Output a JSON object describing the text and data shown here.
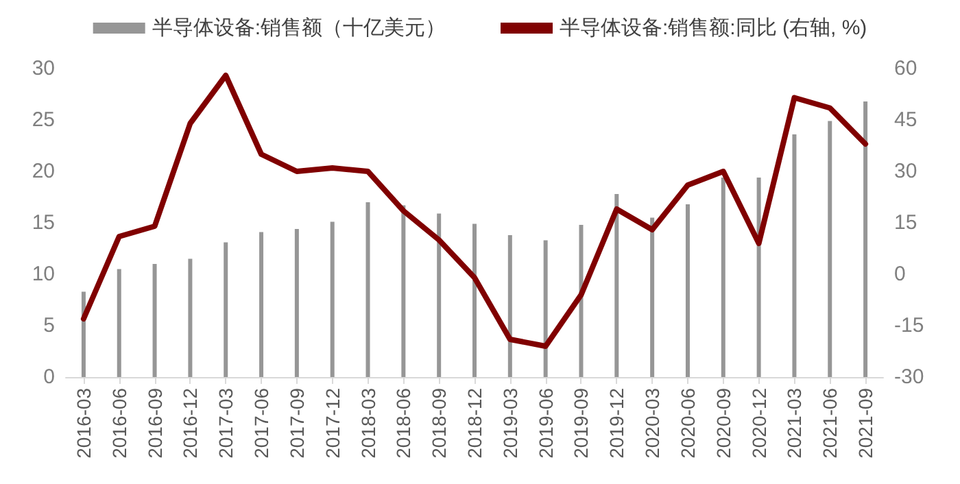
{
  "chart_data": {
    "type": "bar",
    "categories": [
      "2016-03",
      "2016-06",
      "2016-09",
      "2016-12",
      "2017-03",
      "2017-06",
      "2017-09",
      "2017-12",
      "2018-03",
      "2018-06",
      "2018-09",
      "2018-12",
      "2019-03",
      "2019-06",
      "2019-09",
      "2019-12",
      "2020-03",
      "2020-06",
      "2020-09",
      "2020-12",
      "2021-03",
      "2021-06",
      "2021-09"
    ],
    "series": [
      {
        "name": "半导体设备:销售额（十亿美元）",
        "color": "#969696",
        "values": [
          8.3,
          10.5,
          11.0,
          11.5,
          13.1,
          14.1,
          14.4,
          15.1,
          17.0,
          16.7,
          15.9,
          14.9,
          13.8,
          13.3,
          14.8,
          17.8,
          15.5,
          16.8,
          19.4,
          19.4,
          23.6,
          24.9,
          26.8
        ]
      },
      {
        "name": "半导体设备:销售额:同比 (右轴, %)",
        "type": "line",
        "axis": "y2",
        "color": "#800000",
        "values": [
          -13,
          11,
          14,
          44,
          58,
          35,
          30,
          31,
          30,
          18.5,
          10,
          -1,
          -19,
          -21,
          -6,
          19,
          13,
          26,
          30,
          9,
          51.5,
          48.5,
          38
        ]
      }
    ],
    "ylim": [
      0,
      30
    ],
    "yticks": [
      0,
      5,
      10,
      15,
      20,
      25,
      30
    ],
    "y2lim": [
      -30,
      60
    ],
    "y2ticks": [
      -30,
      -15,
      0,
      15,
      30,
      45,
      60
    ],
    "legend": "top",
    "grid": false,
    "marker": "none",
    "line_style": "solid"
  }
}
